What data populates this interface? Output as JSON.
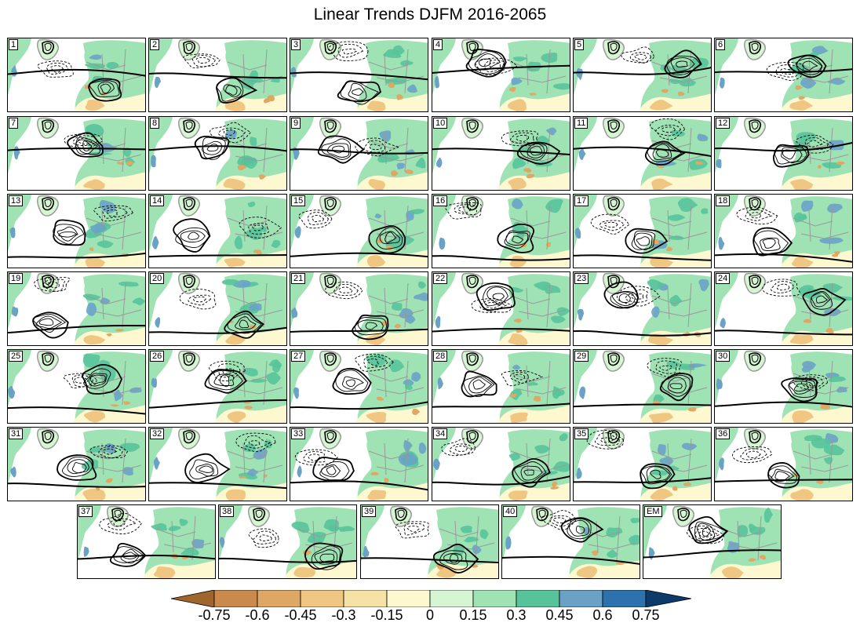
{
  "figure": {
    "title": "Linear Trends DJFM 2016-2065"
  },
  "panels": [
    "1",
    "2",
    "3",
    "4",
    "5",
    "6",
    "7",
    "8",
    "9",
    "10",
    "11",
    "12",
    "13",
    "14",
    "15",
    "16",
    "17",
    "18",
    "19",
    "20",
    "21",
    "22",
    "23",
    "24",
    "25",
    "26",
    "27",
    "28",
    "29",
    "30",
    "31",
    "32",
    "33",
    "34",
    "35",
    "36",
    "37",
    "38",
    "39",
    "40",
    "EM"
  ],
  "colorbar": {
    "tick_labels": [
      "-0.75",
      "-0.6",
      "-0.45",
      "-0.3",
      "-0.15",
      "0",
      "0.15",
      "0.3",
      "0.45",
      "0.6",
      "0.75"
    ],
    "colors": [
      "#a0642d",
      "#c98a4b",
      "#dea764",
      "#efc682",
      "#f6e2a5",
      "#fdf8cf",
      "#d6f5d2",
      "#9fe3b4",
      "#57c39a",
      "#6aa2c6",
      "#2c73ad",
      "#0c3b6b"
    ]
  },
  "map_colors": {
    "land_green": "#9fe3b4",
    "land_green_light": "#d6f5d2",
    "land_dark": "#57c39a",
    "land_blue": "#6aa2c6",
    "dry_yellow": "#efc682",
    "dry_light": "#fdf8cf",
    "dry_brown": "#dea764",
    "country_border": "#999999",
    "contour": "#000000"
  }
}
